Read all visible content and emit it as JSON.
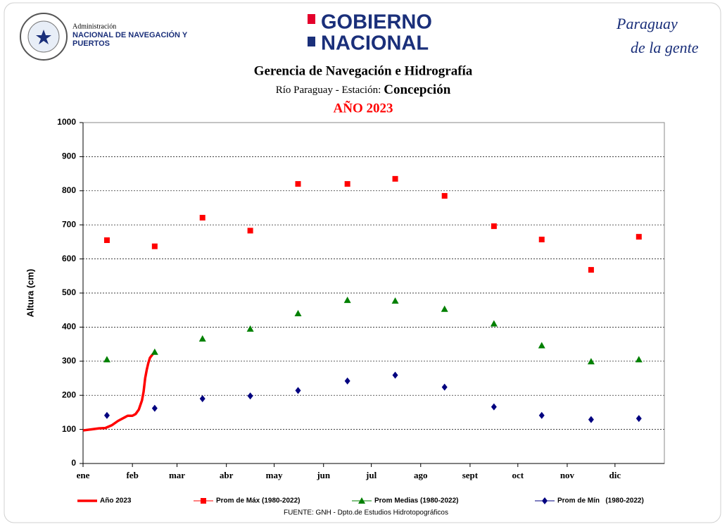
{
  "header": {
    "agency_small": "Administración",
    "agency_line1": "NACIONAL DE NAVEGACIÓN Y",
    "agency_line2": "PUERTOS",
    "gov_line1": "GOBIERNO",
    "gov_line2": "NACIONAL",
    "slogan_line1": "Paraguay",
    "slogan_line2": "de la gente"
  },
  "chart_data": {
    "type": "line",
    "title": "Gerencia de Navegación e Hidrografía",
    "subtitle": "Río Paraguay - Estación:",
    "station": "Concepción",
    "year_label": "AÑO 2023",
    "ylabel": "Altura (cm)",
    "source": "FUENTE:  GNH - Dpto.de Estudios Hidrotopográficos",
    "xlim": [
      0,
      365
    ],
    "ylim": [
      0,
      1000
    ],
    "xticks": [
      {
        "value": 0,
        "label": "ene"
      },
      {
        "value": 31,
        "label": "feb"
      },
      {
        "value": 59,
        "label": "mar"
      },
      {
        "value": 90,
        "label": "abr"
      },
      {
        "value": 120,
        "label": "may"
      },
      {
        "value": 151,
        "label": "jun"
      },
      {
        "value": 181,
        "label": "jul"
      },
      {
        "value": 212,
        "label": "ago"
      },
      {
        "value": 243,
        "label": "sept"
      },
      {
        "value": 273,
        "label": "oct"
      },
      {
        "value": 304,
        "label": "nov"
      },
      {
        "value": 334,
        "label": "dic"
      }
    ],
    "yticks": [
      0,
      100,
      200,
      300,
      400,
      500,
      600,
      700,
      800,
      900,
      1000
    ],
    "grid": true,
    "legend": "bottom",
    "series": [
      {
        "name": "Año 2023",
        "color": "#ff0000",
        "line": true,
        "marker": "none",
        "x": [
          0,
          5,
          10,
          14,
          18,
          22,
          26,
          28,
          31,
          33,
          35,
          37,
          38,
          39,
          40,
          41,
          42,
          44
        ],
        "values": [
          97,
          100,
          103,
          104,
          112,
          125,
          135,
          140,
          140,
          145,
          158,
          185,
          210,
          250,
          275,
          295,
          310,
          322
        ]
      },
      {
        "name": "Prom de Máx (1980-2022)",
        "color": "#ff0000",
        "line": false,
        "marker": "square",
        "x": [
          15,
          45,
          75,
          105,
          135,
          166,
          196,
          227,
          258,
          288,
          319,
          349
        ],
        "values": [
          655,
          637,
          721,
          683,
          820,
          820,
          835,
          785,
          696,
          657,
          568,
          665
        ]
      },
      {
        "name": "Prom Medias (1980-2022)",
        "color": "#008000",
        "line": false,
        "marker": "triangle",
        "x": [
          15,
          45,
          75,
          105,
          135,
          166,
          196,
          227,
          258,
          288,
          319,
          349
        ],
        "values": [
          305,
          327,
          366,
          395,
          440,
          479,
          477,
          453,
          410,
          346,
          299,
          305
        ]
      },
      {
        "name": "Prom de Mín   (1980-2022)",
        "color": "#000080",
        "line": false,
        "marker": "diamond",
        "x": [
          15,
          45,
          75,
          105,
          135,
          166,
          196,
          227,
          258,
          288,
          319,
          349
        ],
        "values": [
          141,
          162,
          190,
          198,
          214,
          242,
          259,
          224,
          166,
          141,
          129,
          132
        ]
      }
    ]
  }
}
